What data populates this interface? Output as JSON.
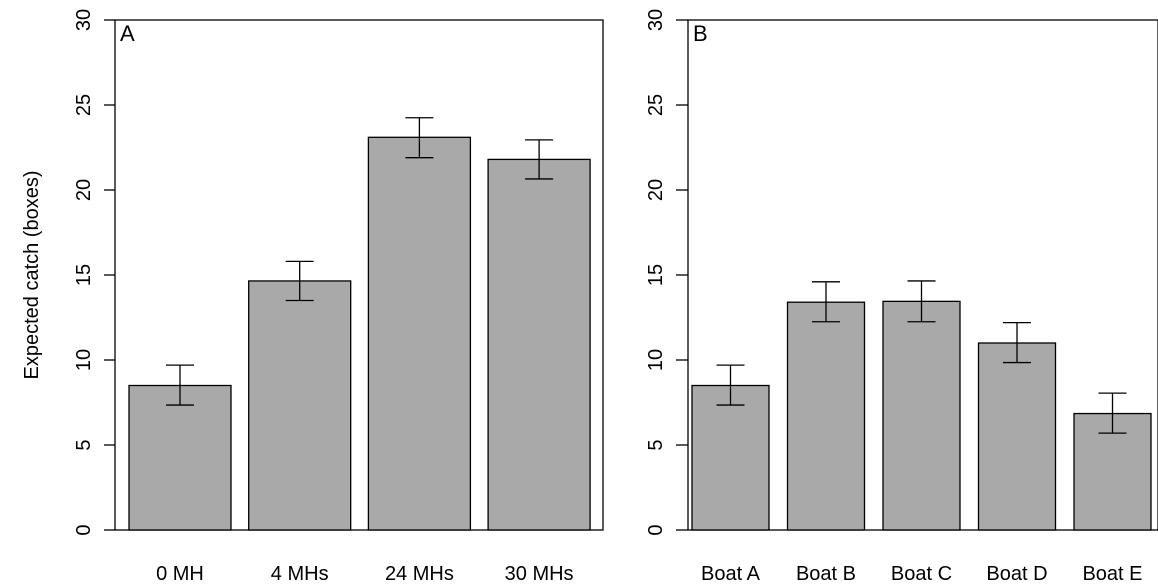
{
  "chart_data": [
    {
      "type": "bar",
      "panel_label": "A",
      "categories": [
        "0 MH",
        "4 MHs",
        "24 MHs",
        "30 MHs"
      ],
      "values": [
        8.5,
        14.65,
        23.1,
        21.8
      ],
      "error_low": [
        7.35,
        13.5,
        21.9,
        20.65
      ],
      "error_high": [
        9.7,
        15.8,
        24.25,
        22.95
      ],
      "ylabel": "Expected catch (boxes)",
      "ylim": [
        0,
        30
      ],
      "yticks": [
        "0",
        "5",
        "10",
        "15",
        "20",
        "25",
        "30"
      ],
      "bar_color": "#a9a9a9"
    },
    {
      "type": "bar",
      "panel_label": "B",
      "categories": [
        "Boat A",
        "Boat B",
        "Boat C",
        "Boat D",
        "Boat E"
      ],
      "values": [
        8.5,
        13.4,
        13.45,
        11.0,
        6.85
      ],
      "error_low": [
        7.35,
        12.25,
        12.25,
        9.85,
        5.7
      ],
      "error_high": [
        9.7,
        14.6,
        14.65,
        12.2,
        8.05
      ],
      "ylabel": "",
      "ylim": [
        0,
        30
      ],
      "yticks": [
        "0",
        "5",
        "10",
        "15",
        "20",
        "25",
        "30"
      ],
      "bar_color": "#a9a9a9"
    }
  ]
}
